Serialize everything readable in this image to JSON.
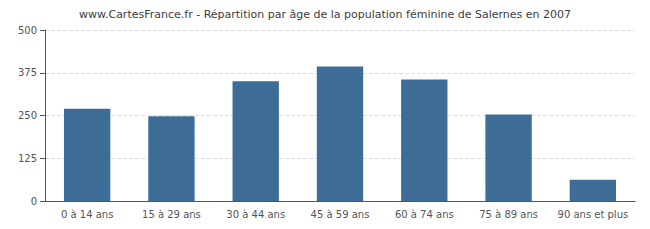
{
  "chart_data": {
    "type": "bar",
    "title": "www.CartesFrance.fr - Répartition par âge de la population féminine de Salernes en 2007",
    "categories": [
      "0 à 14 ans",
      "15 à 29 ans",
      "30 à 44 ans",
      "45 à 59 ans",
      "60 à 74 ans",
      "75 à 89 ans",
      "90 ans et plus"
    ],
    "values": [
      270,
      248,
      350,
      393,
      355,
      253,
      62
    ],
    "color": "#3d6d96",
    "ylim": [
      0,
      500
    ],
    "yticks": [
      0,
      125,
      250,
      375,
      500
    ],
    "grid": true
  }
}
